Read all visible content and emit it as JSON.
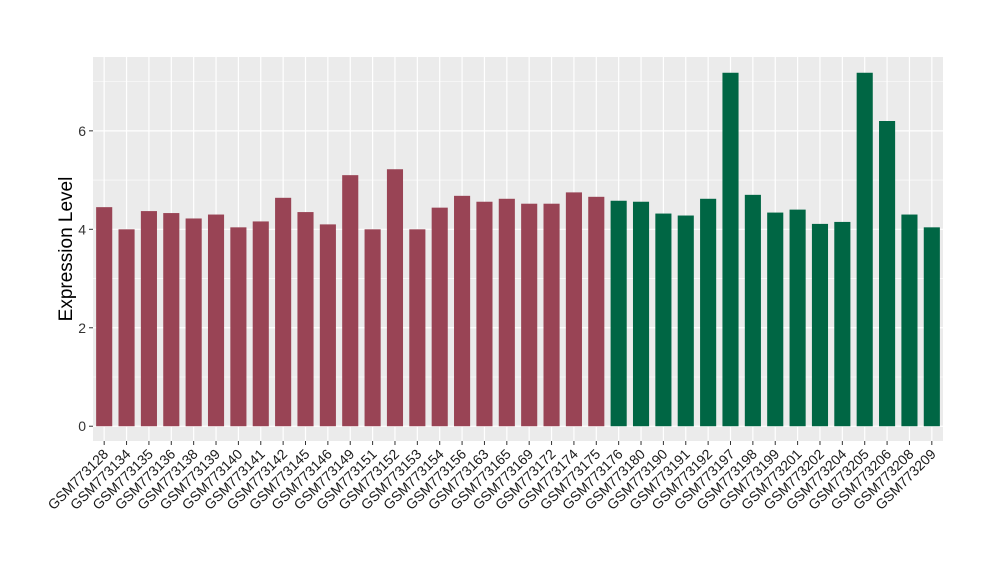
{
  "chart_data": {
    "type": "bar",
    "title": "",
    "xlabel": "",
    "ylabel": "Expression Level",
    "ylim": [
      -0.3,
      7.5
    ],
    "yticks": [
      0,
      2,
      4,
      6
    ],
    "grid": true,
    "legend": "none",
    "categories": [
      "GSM773128",
      "GSM773134",
      "GSM773135",
      "GSM773136",
      "GSM773138",
      "GSM773139",
      "GSM773140",
      "GSM773141",
      "GSM773142",
      "GSM773145",
      "GSM773146",
      "GSM773149",
      "GSM773151",
      "GSM773152",
      "GSM773153",
      "GSM773154",
      "GSM773156",
      "GSM773163",
      "GSM773165",
      "GSM773169",
      "GSM773172",
      "GSM773174",
      "GSM773175",
      "GSM773176",
      "GSM773180",
      "GSM773190",
      "GSM773191",
      "GSM773192",
      "GSM773197",
      "GSM773198",
      "GSM773199",
      "GSM773201",
      "GSM773202",
      "GSM773204",
      "GSM773205",
      "GSM773206",
      "GSM773208",
      "GSM773209"
    ],
    "values": [
      4.45,
      4.0,
      4.37,
      4.33,
      4.22,
      4.3,
      4.04,
      4.16,
      4.64,
      4.35,
      4.1,
      5.1,
      4.0,
      5.22,
      4.0,
      4.44,
      4.68,
      4.56,
      4.62,
      4.52,
      4.52,
      4.75,
      4.66,
      4.58,
      4.56,
      4.32,
      4.28,
      4.62,
      7.18,
      4.7,
      4.34,
      4.4,
      4.11,
      4.15,
      7.18,
      6.2,
      4.3,
      4.04
    ],
    "group_colors": [
      "#994455",
      "#994455",
      "#994455",
      "#994455",
      "#994455",
      "#994455",
      "#994455",
      "#994455",
      "#994455",
      "#994455",
      "#994455",
      "#994455",
      "#994455",
      "#994455",
      "#994455",
      "#994455",
      "#994455",
      "#994455",
      "#994455",
      "#994455",
      "#994455",
      "#994455",
      "#994455",
      "#006644",
      "#006644",
      "#006644",
      "#006644",
      "#006644",
      "#006644",
      "#006644",
      "#006644",
      "#006644",
      "#006644",
      "#006644",
      "#006644",
      "#006644",
      "#006644",
      "#006644"
    ],
    "panel_color": "#ebebeb",
    "gridline_color": "#ffffff"
  }
}
